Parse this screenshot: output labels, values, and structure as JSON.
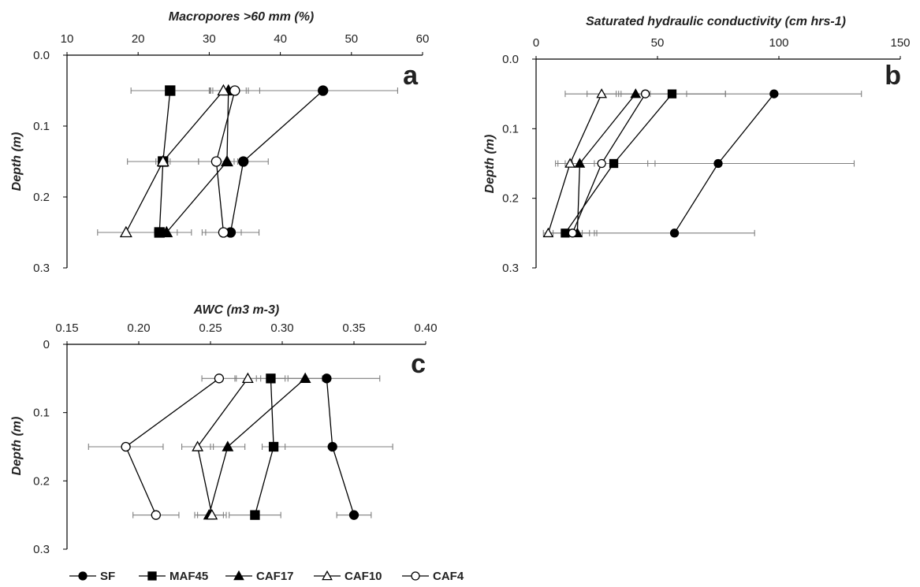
{
  "chart_data": [
    {
      "type": "line",
      "panel_label": "a",
      "xlabel": "Macropores >60 mm (%)",
      "ylabel": "Depth (m)",
      "xlim": [
        10,
        60
      ],
      "ylim": [
        0,
        0.3
      ],
      "xticks": [
        "10",
        "20",
        "30",
        "40",
        "50",
        "60"
      ],
      "yticks": [
        "0.0",
        "0.1",
        "0.2",
        "0.3"
      ],
      "y": [
        0.05,
        0.15,
        0.25
      ],
      "series": [
        {
          "name": "SF",
          "x": [
            46.0,
            34.8,
            33.0
          ],
          "err": [
            10.5,
            3.5,
            4.0
          ]
        },
        {
          "name": "MAF45",
          "x": [
            24.5,
            23.5,
            23.0
          ],
          "err": [
            5.5,
            5.0,
            4.5
          ]
        },
        {
          "name": "CAF17",
          "x": [
            32.7,
            32.5,
            24.0
          ],
          "err": [
            2.5,
            1.5,
            1.5
          ]
        },
        {
          "name": "CAF10",
          "x": [
            32.0,
            23.5,
            18.3
          ],
          "err": [
            1.5,
            1.0,
            4.0
          ]
        },
        {
          "name": "CAF4",
          "x": [
            33.6,
            31.0,
            32.0
          ],
          "err": [
            3.5,
            2.5,
            2.5
          ]
        }
      ]
    },
    {
      "type": "line",
      "panel_label": "b",
      "xlabel": "Saturated hydraulic conductivity (cm hrs-1)",
      "ylabel": "Depth (m)",
      "xlim": [
        0,
        150
      ],
      "ylim": [
        0,
        0.3
      ],
      "xticks": [
        "0",
        "50",
        "100",
        "150"
      ],
      "yticks": [
        "0.0",
        "0.1",
        "0.2",
        "0.3"
      ],
      "y": [
        0.05,
        0.15,
        0.25
      ],
      "series": [
        {
          "name": "SF",
          "x": [
            98,
            75,
            57
          ],
          "err": [
            36,
            56,
            33
          ]
        },
        {
          "name": "MAF45",
          "x": [
            56,
            32,
            12
          ],
          "err": [
            22,
            17,
            7
          ]
        },
        {
          "name": "CAF17",
          "x": [
            41,
            18,
            17
          ],
          "err": [
            6,
            6,
            5
          ]
        },
        {
          "name": "CAF10",
          "x": [
            27,
            14,
            5
          ],
          "err": [
            6,
            5,
            2
          ]
        },
        {
          "name": "CAF4",
          "x": [
            45,
            27,
            15
          ],
          "err": [
            33,
            19,
            10
          ]
        }
      ]
    },
    {
      "type": "line",
      "panel_label": "c",
      "xlabel": "AWC (m3 m-3)",
      "ylabel": "Depth (m)",
      "xlim": [
        0.15,
        0.4
      ],
      "ylim": [
        0,
        0.3
      ],
      "xticks": [
        "0.15",
        "0.20",
        "0.25",
        "0.30",
        "0.35",
        "0.40"
      ],
      "yticks": [
        "0",
        "0.1",
        "0.2",
        "0.3"
      ],
      "y": [
        0.05,
        0.15,
        0.25
      ],
      "series": [
        {
          "name": "SF",
          "x": [
            0.331,
            0.335,
            0.35
          ],
          "err": [
            0.037,
            0.042,
            0.012
          ]
        },
        {
          "name": "MAF45",
          "x": [
            0.292,
            0.294,
            0.281
          ],
          "err": [
            0.01,
            0.008,
            0.018
          ]
        },
        {
          "name": "CAF17",
          "x": [
            0.316,
            0.262,
            0.249
          ],
          "err": [
            0.012,
            0.012,
            0.01
          ]
        },
        {
          "name": "CAF10",
          "x": [
            0.276,
            0.241,
            0.251
          ],
          "err": [
            0.009,
            0.011,
            0.01
          ]
        },
        {
          "name": "CAF4",
          "x": [
            0.256,
            0.191,
            0.212
          ],
          "err": [
            0.012,
            0.026,
            0.016
          ]
        }
      ]
    }
  ],
  "legend": {
    "placement": "bottom-left",
    "items": [
      {
        "name": "SF",
        "marker": "filled-circle"
      },
      {
        "name": "MAF45",
        "marker": "filled-square"
      },
      {
        "name": "CAF17",
        "marker": "filled-triangle"
      },
      {
        "name": "CAF10",
        "marker": "open-triangle"
      },
      {
        "name": "CAF4",
        "marker": "open-circle"
      }
    ]
  },
  "colors": {
    "line": "#000000",
    "error_bar": "#7f7f7f",
    "marker_fill_open": "#ffffff"
  }
}
